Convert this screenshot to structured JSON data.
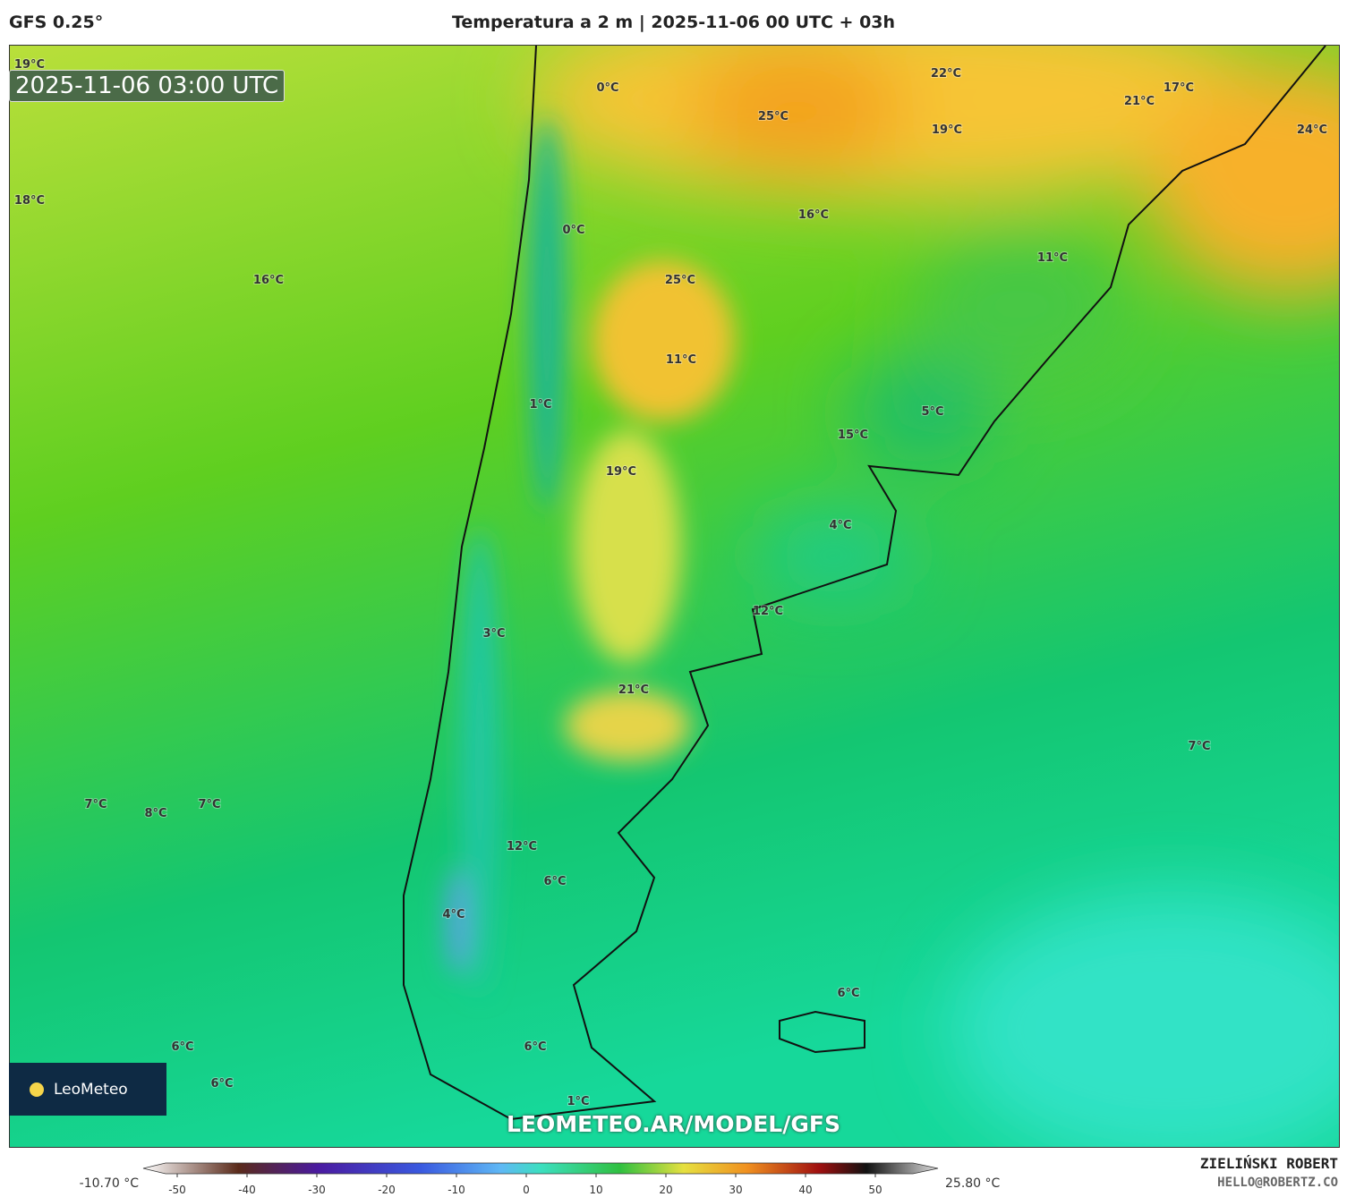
{
  "header": {
    "model": "GFS 0.25°",
    "title": "Temperatura a 2 m | 2025-11-06 00 UTC + 03h"
  },
  "map": {
    "timestamp": "2025-11-06 03:00 UTC",
    "labels": [
      "19°C",
      "18°C",
      "16°C",
      "0°C",
      "25°C",
      "22°C",
      "19°C",
      "21°C",
      "17°C",
      "24°C",
      "0°C",
      "16°C",
      "25°C",
      "11°C",
      "11°C",
      "1°C",
      "5°C",
      "15°C",
      "19°C",
      "4°C",
      "12°C",
      "3°C",
      "21°C",
      "7°C",
      "7°C",
      "8°C",
      "7°C",
      "12°C",
      "6°C",
      "4°C",
      "6°C",
      "6°C",
      "6°C",
      "6°C",
      "1°C"
    ],
    "logo": "LeoMeteo",
    "watermark": "LEOMETEO.AR/MODEL/GFS"
  },
  "colorbar": {
    "min_label": "-10.70 °C",
    "max_label": "25.80 °C",
    "ticks": [
      -50,
      -40,
      -30,
      -20,
      -10,
      0,
      10,
      20,
      30,
      40,
      50
    ]
  },
  "footer": {
    "author": "ZIELIŃSKI ROBERT",
    "contact": "HELLO@ROBERTZ.CO"
  }
}
